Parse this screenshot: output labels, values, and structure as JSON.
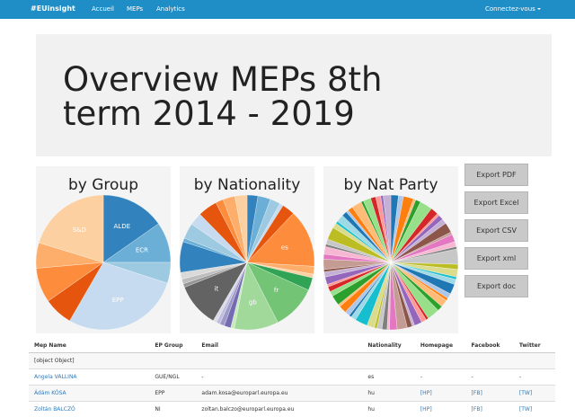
{
  "nav": {
    "brand": "#EUinsight",
    "links": [
      "Accueil",
      "MEPs",
      "Analytics"
    ],
    "login": "Connectez-vous"
  },
  "header": {
    "title": "Overview MEPs 8th term 2014 - 2019"
  },
  "chart_data": [
    {
      "type": "pie",
      "title": "by Group",
      "categories": [
        "ALDE",
        "ECR",
        null,
        "EPP",
        null,
        null,
        null,
        "S&D"
      ],
      "values": [
        55,
        35,
        18,
        102,
        25,
        30,
        22,
        73
      ],
      "palette": [
        "#3182bd",
        "#6baed6",
        "#9ecae1",
        "#c6dbef",
        "#e6550d",
        "#fd8d3c",
        "#fdae6b",
        "#fdd0a2"
      ]
    },
    {
      "type": "pie",
      "title": "by Nationality",
      "categories": [
        null,
        null,
        null,
        null,
        null,
        "es",
        null,
        null,
        null,
        "fr",
        "gb",
        null,
        null,
        null,
        null,
        null,
        "it",
        null,
        null,
        null,
        null,
        null,
        null,
        null,
        null,
        null,
        null,
        null
      ],
      "values": [
        18,
        21,
        17,
        6,
        21,
        96,
        13,
        6,
        21,
        74,
        73,
        6,
        11,
        8,
        6,
        6,
        73,
        6,
        8,
        11,
        51,
        6,
        26,
        21,
        32,
        13,
        20,
        20
      ],
      "palette": [
        "#3182bd",
        "#6baed6",
        "#9ecae1",
        "#c6dbef",
        "#e6550d",
        "#fd8d3c",
        "#fdae6b",
        "#fdd0a2",
        "#31a354",
        "#74c476",
        "#a1d99b",
        "#c7e9c0",
        "#756bb1",
        "#9e9ac8",
        "#bcbddc",
        "#dadaeb",
        "#636363",
        "#969696",
        "#bdbdbd",
        "#d9d9d9"
      ]
    },
    {
      "type": "pie",
      "title": "by Nat Party",
      "values": [
        3,
        2,
        4,
        1,
        2,
        5,
        3,
        1,
        2,
        2,
        4,
        1,
        3,
        2,
        1,
        6,
        2,
        3,
        1,
        2,
        4,
        2,
        1,
        3,
        2,
        5,
        1,
        2,
        3,
        1,
        2,
        4,
        3,
        1,
        2,
        2,
        1,
        3,
        5,
        2,
        1,
        2,
        3,
        1,
        4,
        2,
        2,
        1,
        3,
        2,
        1,
        4,
        2,
        3,
        1,
        2,
        5,
        2,
        1,
        3,
        2,
        1,
        2,
        4,
        1,
        3,
        2,
        2,
        1,
        3
      ],
      "palette": [
        "#1f77b4",
        "#aec7e8",
        "#ff7f0e",
        "#ffbb78",
        "#2ca02c",
        "#98df8a",
        "#d62728",
        "#ff9896",
        "#9467bd",
        "#c5b0d5",
        "#8c564b",
        "#c49c94",
        "#e377c2",
        "#f7b6d2",
        "#7f7f7f",
        "#c7c7c7",
        "#bcbd22",
        "#dbdb8d",
        "#17becf",
        "#9edae5"
      ]
    }
  ],
  "buttons": [
    "Export PDF",
    "Export Excel",
    "Export CSV",
    "Export xml",
    "Export doc"
  ],
  "table": {
    "columns": [
      "Mep Name",
      "EP Group",
      "Email",
      "Nationality",
      "Homepage",
      "Facebook",
      "Twitter"
    ],
    "rows": [
      [
        "[object Object]"
      ],
      [
        "Angela VALLINA",
        "GUE/NGL",
        "-",
        "es",
        "-",
        "-",
        "-"
      ],
      [
        "Ádám KÓSA",
        "EPP",
        "adam.kosa@europarl.europa.eu",
        "hu",
        "[HP]",
        "[FB]",
        "[TW]"
      ],
      [
        "Zoltán BALCZÓ",
        "NI",
        "zoltan.balczo@europarl.europa.eu",
        "hu",
        "[HP]",
        "[FB]",
        "[TW]"
      ]
    ]
  }
}
